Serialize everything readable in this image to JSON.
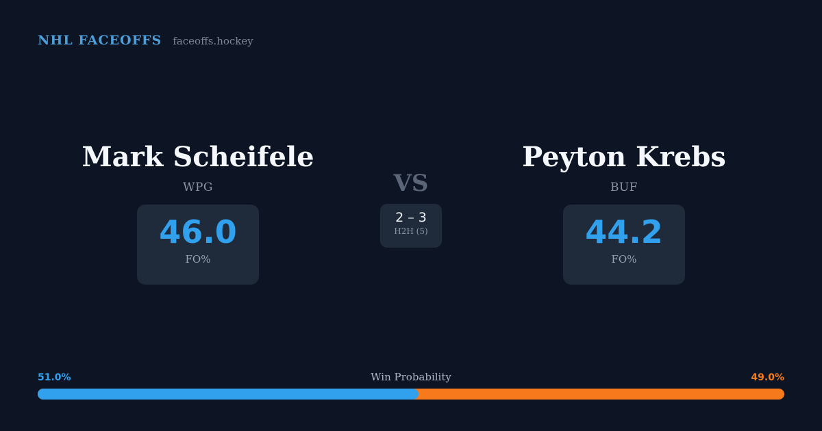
{
  "header": {
    "title": "NHL FACEOFFS",
    "site": "faceoffs.hockey"
  },
  "players": [
    {
      "name": "Mark Scheifele",
      "team": "WPG",
      "fo_pct": "46.0",
      "stat_label": "FO%"
    },
    {
      "name": "Peyton Krebs",
      "team": "BUF",
      "fo_pct": "44.2",
      "stat_label": "FO%"
    }
  ],
  "matchup": {
    "vs_label": "VS",
    "h2h_record": "2 – 3",
    "h2h_label": "H2H (5)"
  },
  "win_probability": {
    "title": "Win Probability",
    "left_label": "51.0%",
    "right_label": "49.0%",
    "left_pct": 51.0,
    "right_pct": 49.0
  },
  "colors": {
    "background": "#0d1524",
    "card": "#1f2a3b",
    "accent_blue": "#31a1ee",
    "accent_orange": "#f67a1c",
    "brand_blue": "#4d9fd9"
  },
  "chart_data": {
    "type": "bar",
    "title": "Win Probability",
    "categories": [
      "Mark Scheifele (WPG)",
      "Peyton Krebs (BUF)"
    ],
    "series": [
      {
        "name": "Faceoff %",
        "values": [
          46.0,
          44.2
        ]
      },
      {
        "name": "Win Probability %",
        "values": [
          51.0,
          49.0
        ]
      }
    ],
    "annotations": [
      "H2H (5): 2 – 3"
    ],
    "legend_position": "none",
    "xlim": [
      0,
      100
    ]
  }
}
